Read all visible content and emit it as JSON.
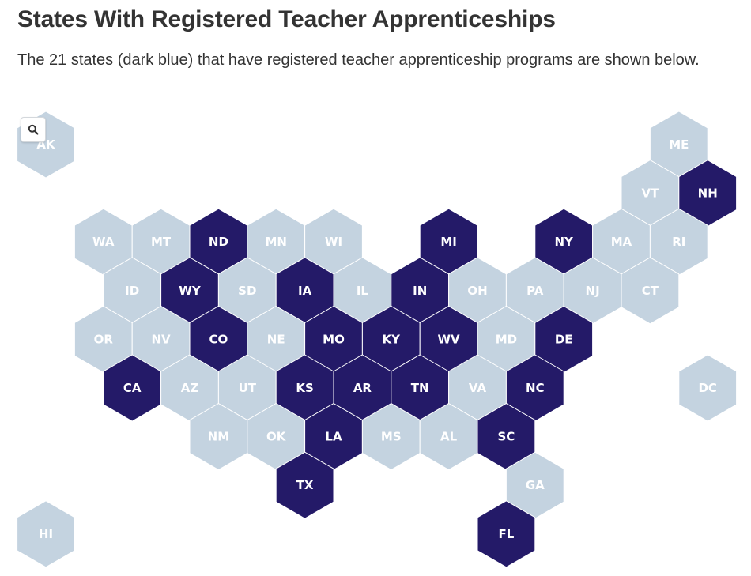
{
  "title": "States With Registered Teacher Apprenticeships",
  "subtitle": "The 21 states (dark blue) that have registered teacher apprenticeship programs are shown below.",
  "zoom_icon": "search-icon",
  "colors": {
    "active": "#241a68",
    "inactive": "#c4d3e0",
    "active_text": "#ffffff",
    "inactive_text": "#ffffff",
    "stroke": "#ffffff"
  },
  "states": [
    {
      "abbr": "AK",
      "active": false,
      "col": 0,
      "row": 0
    },
    {
      "abbr": "ME",
      "active": false,
      "col": 11,
      "row": 0
    },
    {
      "abbr": "VT",
      "active": false,
      "col": 10,
      "row": 1
    },
    {
      "abbr": "NH",
      "active": true,
      "col": 11,
      "row": 1
    },
    {
      "abbr": "WA",
      "active": false,
      "col": 1,
      "row": 2
    },
    {
      "abbr": "MT",
      "active": false,
      "col": 2,
      "row": 2
    },
    {
      "abbr": "ND",
      "active": true,
      "col": 3,
      "row": 2
    },
    {
      "abbr": "MN",
      "active": false,
      "col": 4,
      "row": 2
    },
    {
      "abbr": "WI",
      "active": false,
      "col": 5,
      "row": 2
    },
    {
      "abbr": "MI",
      "active": true,
      "col": 7,
      "row": 2
    },
    {
      "abbr": "NY",
      "active": true,
      "col": 9,
      "row": 2
    },
    {
      "abbr": "MA",
      "active": false,
      "col": 10,
      "row": 2
    },
    {
      "abbr": "RI",
      "active": false,
      "col": 11,
      "row": 2
    },
    {
      "abbr": "ID",
      "active": false,
      "col": 1,
      "row": 3
    },
    {
      "abbr": "WY",
      "active": true,
      "col": 2,
      "row": 3
    },
    {
      "abbr": "SD",
      "active": false,
      "col": 3,
      "row": 3
    },
    {
      "abbr": "IA",
      "active": true,
      "col": 4,
      "row": 3
    },
    {
      "abbr": "IL",
      "active": false,
      "col": 5,
      "row": 3
    },
    {
      "abbr": "IN",
      "active": true,
      "col": 6,
      "row": 3
    },
    {
      "abbr": "OH",
      "active": false,
      "col": 7,
      "row": 3
    },
    {
      "abbr": "PA",
      "active": false,
      "col": 8,
      "row": 3
    },
    {
      "abbr": "NJ",
      "active": false,
      "col": 9,
      "row": 3
    },
    {
      "abbr": "CT",
      "active": false,
      "col": 10,
      "row": 3
    },
    {
      "abbr": "OR",
      "active": false,
      "col": 1,
      "row": 4
    },
    {
      "abbr": "NV",
      "active": false,
      "col": 2,
      "row": 4
    },
    {
      "abbr": "CO",
      "active": true,
      "col": 3,
      "row": 4
    },
    {
      "abbr": "NE",
      "active": false,
      "col": 4,
      "row": 4
    },
    {
      "abbr": "MO",
      "active": true,
      "col": 5,
      "row": 4
    },
    {
      "abbr": "KY",
      "active": true,
      "col": 6,
      "row": 4
    },
    {
      "abbr": "WV",
      "active": true,
      "col": 7,
      "row": 4
    },
    {
      "abbr": "MD",
      "active": false,
      "col": 8,
      "row": 4
    },
    {
      "abbr": "DE",
      "active": true,
      "col": 9,
      "row": 4
    },
    {
      "abbr": "CA",
      "active": true,
      "col": 1,
      "row": 5
    },
    {
      "abbr": "AZ",
      "active": false,
      "col": 2,
      "row": 5
    },
    {
      "abbr": "UT",
      "active": false,
      "col": 3,
      "row": 5
    },
    {
      "abbr": "KS",
      "active": true,
      "col": 4,
      "row": 5
    },
    {
      "abbr": "AR",
      "active": true,
      "col": 5,
      "row": 5
    },
    {
      "abbr": "TN",
      "active": true,
      "col": 6,
      "row": 5
    },
    {
      "abbr": "VA",
      "active": false,
      "col": 7,
      "row": 5
    },
    {
      "abbr": "NC",
      "active": true,
      "col": 8,
      "row": 5
    },
    {
      "abbr": "DC",
      "active": false,
      "col": 11,
      "row": 5
    },
    {
      "abbr": "NM",
      "active": false,
      "col": 3,
      "row": 6
    },
    {
      "abbr": "OK",
      "active": false,
      "col": 4,
      "row": 6
    },
    {
      "abbr": "LA",
      "active": true,
      "col": 5,
      "row": 6
    },
    {
      "abbr": "MS",
      "active": false,
      "col": 6,
      "row": 6
    },
    {
      "abbr": "AL",
      "active": false,
      "col": 7,
      "row": 6
    },
    {
      "abbr": "SC",
      "active": true,
      "col": 8,
      "row": 6
    },
    {
      "abbr": "TX",
      "active": true,
      "col": 4,
      "row": 7
    },
    {
      "abbr": "GA",
      "active": false,
      "col": 8,
      "row": 7
    },
    {
      "abbr": "HI",
      "active": false,
      "col": 0,
      "row": 8
    },
    {
      "abbr": "FL",
      "active": true,
      "col": 8,
      "row": 8
    }
  ]
}
